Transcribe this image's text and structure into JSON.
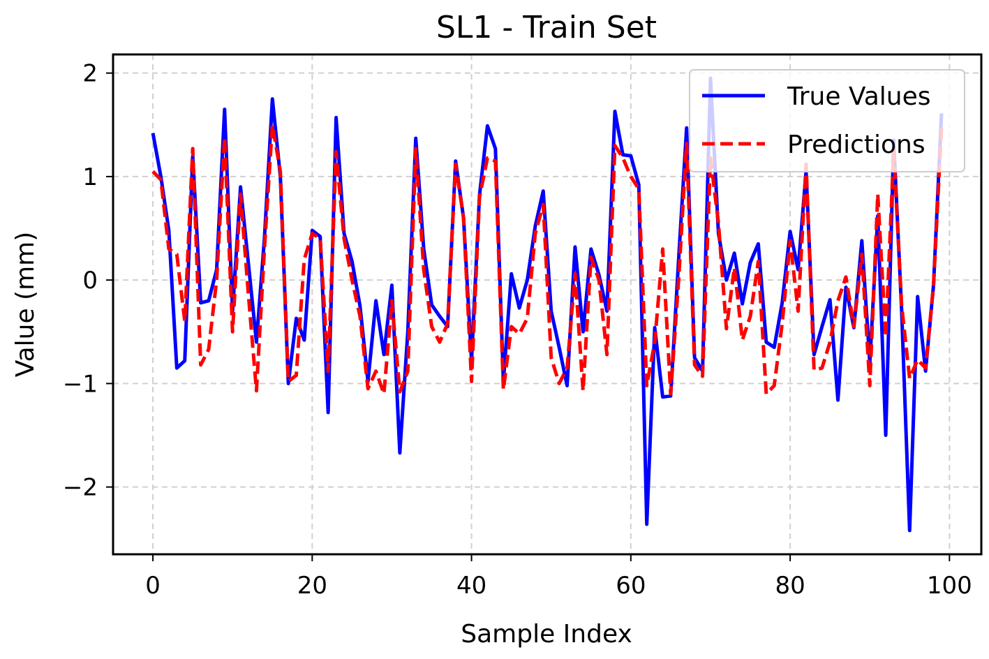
{
  "chart_data": {
    "type": "line",
    "title": "SL1 - Train Set",
    "xlabel": "Sample Index",
    "ylabel": "Value (mm)",
    "xlim": [
      -5,
      104
    ],
    "ylim": [
      -2.65,
      2.18
    ],
    "xticks": [
      0,
      20,
      40,
      60,
      80,
      100
    ],
    "xtick_labels": [
      "0",
      "20",
      "40",
      "60",
      "80",
      "100"
    ],
    "yticks": [
      2,
      1,
      0,
      -1,
      -2
    ],
    "ytick_labels": [
      "2",
      "1",
      "0",
      "−1",
      "−2"
    ],
    "grid": true,
    "legend_position": "top-right",
    "x": [
      0,
      1,
      2,
      3,
      4,
      5,
      6,
      7,
      8,
      9,
      10,
      11,
      12,
      13,
      14,
      15,
      16,
      17,
      18,
      19,
      20,
      21,
      22,
      23,
      24,
      25,
      26,
      27,
      28,
      29,
      30,
      31,
      32,
      33,
      34,
      35,
      36,
      37,
      38,
      39,
      40,
      41,
      42,
      43,
      44,
      45,
      46,
      47,
      48,
      49,
      50,
      51,
      52,
      53,
      54,
      55,
      56,
      57,
      58,
      59,
      60,
      61,
      62,
      63,
      64,
      65,
      66,
      67,
      68,
      69,
      70,
      71,
      72,
      73,
      74,
      75,
      76,
      77,
      78,
      79,
      80,
      81,
      82,
      83,
      84,
      85,
      86,
      87,
      88,
      89,
      90,
      91,
      92,
      93,
      94,
      95,
      96,
      97,
      98,
      99
    ],
    "series": [
      {
        "name": "True Values",
        "color": "#0000ff",
        "style": "solid",
        "values": [
          1.42,
          1.0,
          0.48,
          -0.85,
          -0.78,
          1.2,
          -0.22,
          -0.2,
          0.1,
          1.65,
          -0.3,
          0.9,
          0.15,
          -0.6,
          0.4,
          1.75,
          1.0,
          -1.0,
          -0.37,
          -0.58,
          0.48,
          0.42,
          -1.28,
          1.57,
          0.45,
          0.18,
          -0.25,
          -0.98,
          -0.2,
          -0.72,
          -0.05,
          -1.67,
          -0.5,
          1.37,
          0.3,
          -0.24,
          -0.35,
          -0.45,
          1.15,
          0.6,
          -0.78,
          0.82,
          1.49,
          1.27,
          -0.98,
          0.06,
          -0.27,
          0.0,
          0.52,
          0.86,
          -0.3,
          -0.65,
          -1.02,
          0.32,
          -0.5,
          0.3,
          0.05,
          -0.3,
          1.63,
          1.21,
          1.2,
          0.92,
          -2.36,
          -0.46,
          -1.13,
          -1.12,
          0.2,
          1.47,
          -0.75,
          -0.88,
          1.95,
          0.45,
          0.0,
          0.26,
          -0.23,
          0.17,
          0.35,
          -0.6,
          -0.65,
          -0.22,
          0.47,
          0.1,
          1.05,
          -0.72,
          -0.45,
          -0.19,
          -1.16,
          -0.07,
          -0.46,
          0.38,
          -0.8,
          0.62,
          -1.5,
          1.35,
          -0.3,
          -2.42,
          -0.16,
          -0.88,
          -0.05,
          1.61
        ]
      },
      {
        "name": "Predictions",
        "color": "#ff0000",
        "style": "dashed",
        "values": [
          1.05,
          0.97,
          0.3,
          0.25,
          -0.4,
          1.27,
          -0.82,
          -0.67,
          0.0,
          1.38,
          -0.5,
          0.83,
          -0.15,
          -1.07,
          0.3,
          1.5,
          1.05,
          -0.98,
          -0.92,
          0.2,
          0.45,
          0.4,
          -0.88,
          1.24,
          0.4,
          0.0,
          -0.35,
          -1.05,
          -0.88,
          -1.1,
          -0.2,
          -1.08,
          -0.88,
          1.27,
          0.1,
          -0.45,
          -0.6,
          -0.42,
          1.12,
          0.6,
          -0.98,
          0.8,
          1.18,
          1.15,
          -1.06,
          -0.45,
          -0.52,
          -0.37,
          0.45,
          0.73,
          -0.75,
          -1.0,
          -0.85,
          0.06,
          -1.07,
          0.22,
          0.0,
          -0.72,
          1.3,
          1.18,
          1.0,
          0.88,
          -1.02,
          -0.6,
          0.3,
          -1.1,
          0.0,
          1.32,
          -0.82,
          -0.93,
          1.18,
          0.55,
          -0.47,
          0.12,
          -0.58,
          -0.35,
          0.18,
          -1.1,
          -1.02,
          -0.42,
          0.38,
          -0.3,
          1.12,
          -0.87,
          -0.85,
          -0.6,
          -0.2,
          0.03,
          -0.45,
          0.25,
          -1.02,
          0.83,
          -0.55,
          1.25,
          -0.25,
          -0.95,
          -0.77,
          -0.85,
          -0.05,
          1.47
        ]
      }
    ]
  }
}
